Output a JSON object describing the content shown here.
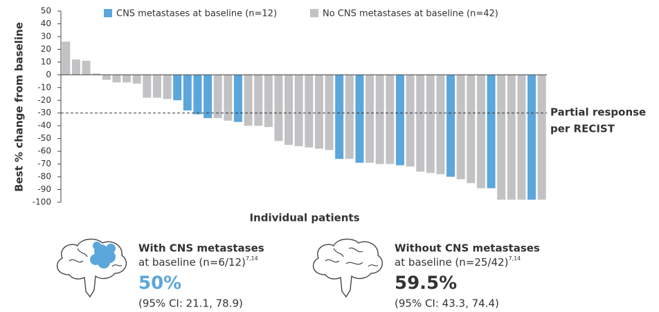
{
  "chart_data": {
    "type": "waterfall",
    "y_label": "Best % change from baseline",
    "x_label": "Individual patients",
    "ylim": [
      -100,
      50
    ],
    "yticks": [
      50,
      40,
      30,
      20,
      10,
      0,
      -10,
      -20,
      -30,
      -40,
      -50,
      -60,
      -70,
      -80,
      -90,
      -100
    ],
    "legend": "top",
    "reference_line": {
      "value": -30,
      "label": [
        "Partial response",
        "per RECIST"
      ]
    },
    "series": [
      {
        "name": "CNS metastases at baseline (n=12)",
        "color": "#5ba6db",
        "values": [
          null,
          null,
          null,
          null,
          null,
          null,
          null,
          null,
          null,
          null,
          null,
          -20,
          -28,
          -31,
          -34,
          null,
          null,
          -37,
          null,
          null,
          null,
          null,
          null,
          null,
          null,
          null,
          null,
          -66,
          null,
          -69,
          null,
          null,
          null,
          -71,
          null,
          null,
          null,
          null,
          -80,
          null,
          null,
          null,
          -89,
          null,
          null,
          null,
          -98,
          null
        ]
      },
      {
        "name": "No CNS metastases at baseline (n=42)",
        "color": "#c2c2c4",
        "values": [
          26,
          12,
          11,
          1,
          -4,
          -6,
          -6,
          -7,
          -18,
          -18,
          -19,
          null,
          null,
          null,
          null,
          -34,
          -36,
          null,
          -40,
          -40,
          -41,
          -52,
          -55,
          -56,
          -57,
          -58,
          -59,
          null,
          -66,
          null,
          -69,
          -70,
          -70,
          null,
          -72,
          -76,
          -77,
          -78,
          null,
          -82,
          -85,
          -89,
          null,
          -98,
          -98,
          -98,
          null,
          -98
        ]
      }
    ]
  },
  "summary": [
    {
      "heading": "With CNS metastases",
      "subheading": "at baseline (n=6/12)",
      "ref": "7,14",
      "rate": "50%",
      "ci": "(95% CI: 21.1, 78.9)"
    },
    {
      "heading": "Without CNS metastases",
      "subheading": "at baseline (n=25/42)",
      "ref": "7,14",
      "rate": "59.5%",
      "ci": "(95% CI: 43.3, 74.4)"
    }
  ]
}
